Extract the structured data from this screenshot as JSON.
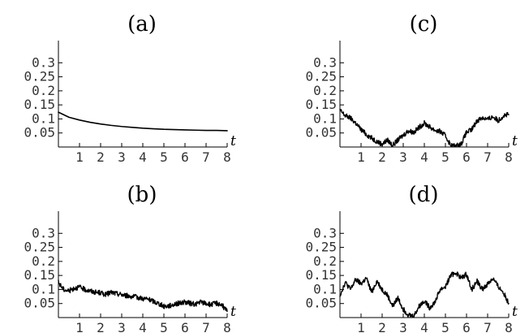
{
  "figure": {
    "panels_in_order": [
      "a",
      "b",
      "c",
      "d"
    ]
  },
  "chart_data": [
    {
      "id": "a",
      "type": "line",
      "title": "(a)",
      "xlabel": "t",
      "ylabel": "",
      "xlim": [
        0,
        8
      ],
      "ylim": [
        0,
        0.35
      ],
      "xticks": [
        1,
        2,
        3,
        4,
        5,
        6,
        7,
        8
      ],
      "xtick_labels": [
        "1",
        "2",
        "3",
        "4",
        "5",
        "6",
        "7",
        "8"
      ],
      "yticks": [
        0.05,
        0.1,
        0.15,
        0.2,
        0.25,
        0.3
      ],
      "ytick_labels": [
        "0.05",
        "0.1",
        "0.15",
        "0.2",
        "0.25",
        "0.3"
      ],
      "grid": false,
      "series": [
        {
          "smooth": true,
          "x": [
            0,
            0.5,
            1,
            1.5,
            2,
            2.5,
            3,
            3.5,
            4,
            4.5,
            5,
            5.5,
            6,
            6.5,
            7,
            7.5,
            8
          ],
          "y": [
            0.124,
            0.106,
            0.096,
            0.088,
            0.082,
            0.077,
            0.073,
            0.07,
            0.067,
            0.065,
            0.063,
            0.062,
            0.061,
            0.06,
            0.059,
            0.059,
            0.058
          ]
        }
      ]
    },
    {
      "id": "c",
      "type": "line",
      "title": "(c)",
      "xlabel": "t",
      "ylabel": "",
      "xlim": [
        0,
        8
      ],
      "ylim": [
        0,
        0.35
      ],
      "xticks": [
        1,
        2,
        3,
        4,
        5,
        6,
        7,
        8
      ],
      "xtick_labels": [
        "1",
        "2",
        "3",
        "4",
        "5",
        "6",
        "7",
        "8"
      ],
      "yticks": [
        0.05,
        0.1,
        0.15,
        0.2,
        0.25,
        0.3
      ],
      "ytick_labels": [
        "0.05",
        "0.1",
        "0.15",
        "0.2",
        "0.25",
        "0.3"
      ],
      "grid": false,
      "series": [
        {
          "smooth": false,
          "x": [
            0,
            0.25,
            0.5,
            0.75,
            1,
            1.25,
            1.5,
            1.75,
            2,
            2.25,
            2.5,
            2.75,
            3,
            3.25,
            3.5,
            3.75,
            4,
            4.25,
            4.5,
            4.75,
            5,
            5.25,
            5.5,
            5.75,
            6,
            6.25,
            6.5,
            6.75,
            7,
            7.25,
            7.5,
            7.75,
            8
          ],
          "y": [
            0.13,
            0.112,
            0.103,
            0.085,
            0.062,
            0.045,
            0.032,
            0.02,
            0.01,
            0.025,
            0.006,
            0.025,
            0.042,
            0.058,
            0.052,
            0.07,
            0.085,
            0.072,
            0.06,
            0.055,
            0.04,
            0.006,
            0.003,
            0.012,
            0.052,
            0.062,
            0.094,
            0.105,
            0.098,
            0.108,
            0.094,
            0.112,
            0.115
          ]
        }
      ]
    },
    {
      "id": "b",
      "type": "line",
      "title": "(b)",
      "xlabel": "t",
      "ylabel": "",
      "xlim": [
        0,
        8
      ],
      "ylim": [
        0,
        0.35
      ],
      "xticks": [
        1,
        2,
        3,
        4,
        5,
        6,
        7,
        8
      ],
      "xtick_labels": [
        "1",
        "2",
        "3",
        "4",
        "5",
        "6",
        "7",
        "8"
      ],
      "yticks": [
        0.05,
        0.1,
        0.15,
        0.2,
        0.25,
        0.3
      ],
      "ytick_labels": [
        "0.05",
        "0.1",
        "0.15",
        "0.2",
        "0.25",
        "0.3"
      ],
      "grid": false,
      "series": [
        {
          "smooth": false,
          "x": [
            0,
            0.25,
            0.5,
            0.75,
            1,
            1.25,
            1.5,
            1.75,
            2,
            2.25,
            2.5,
            2.75,
            3,
            3.25,
            3.5,
            3.75,
            4,
            4.25,
            4.5,
            4.75,
            5,
            5.25,
            5.5,
            5.75,
            6,
            6.25,
            6.5,
            6.75,
            7,
            7.25,
            7.5,
            7.75,
            8
          ],
          "y": [
            0.125,
            0.1,
            0.095,
            0.105,
            0.108,
            0.1,
            0.095,
            0.09,
            0.088,
            0.082,
            0.09,
            0.085,
            0.082,
            0.078,
            0.075,
            0.072,
            0.068,
            0.065,
            0.058,
            0.05,
            0.04,
            0.042,
            0.048,
            0.052,
            0.055,
            0.05,
            0.048,
            0.055,
            0.05,
            0.046,
            0.052,
            0.045,
            0.022
          ]
        }
      ]
    },
    {
      "id": "d",
      "type": "line",
      "title": "(d)",
      "xlabel": "t",
      "ylabel": "",
      "xlim": [
        0,
        8
      ],
      "ylim": [
        0,
        0.35
      ],
      "xticks": [
        1,
        2,
        3,
        4,
        5,
        6,
        7,
        8
      ],
      "xtick_labels": [
        "1",
        "2",
        "3",
        "4",
        "5",
        "6",
        "7",
        "8"
      ],
      "yticks": [
        0.05,
        0.1,
        0.15,
        0.2,
        0.25,
        0.3
      ],
      "ytick_labels": [
        "0.05",
        "0.1",
        "0.15",
        "0.2",
        "0.25",
        "0.3"
      ],
      "grid": false,
      "series": [
        {
          "smooth": false,
          "x": [
            0,
            0.25,
            0.5,
            0.75,
            1,
            1.25,
            1.5,
            1.75,
            2,
            2.25,
            2.5,
            2.75,
            3,
            3.25,
            3.5,
            3.75,
            4,
            4.25,
            4.5,
            4.75,
            5,
            5.25,
            5.5,
            5.75,
            6,
            6.25,
            6.5,
            6.75,
            7,
            7.25,
            7.5,
            7.75,
            8
          ],
          "y": [
            0.08,
            0.125,
            0.1,
            0.135,
            0.12,
            0.14,
            0.09,
            0.13,
            0.1,
            0.08,
            0.04,
            0.07,
            0.03,
            0.01,
            0.005,
            0.04,
            0.06,
            0.035,
            0.055,
            0.1,
            0.11,
            0.15,
            0.16,
            0.14,
            0.155,
            0.1,
            0.13,
            0.1,
            0.12,
            0.14,
            0.11,
            0.09,
            0.05
          ]
        }
      ]
    }
  ]
}
